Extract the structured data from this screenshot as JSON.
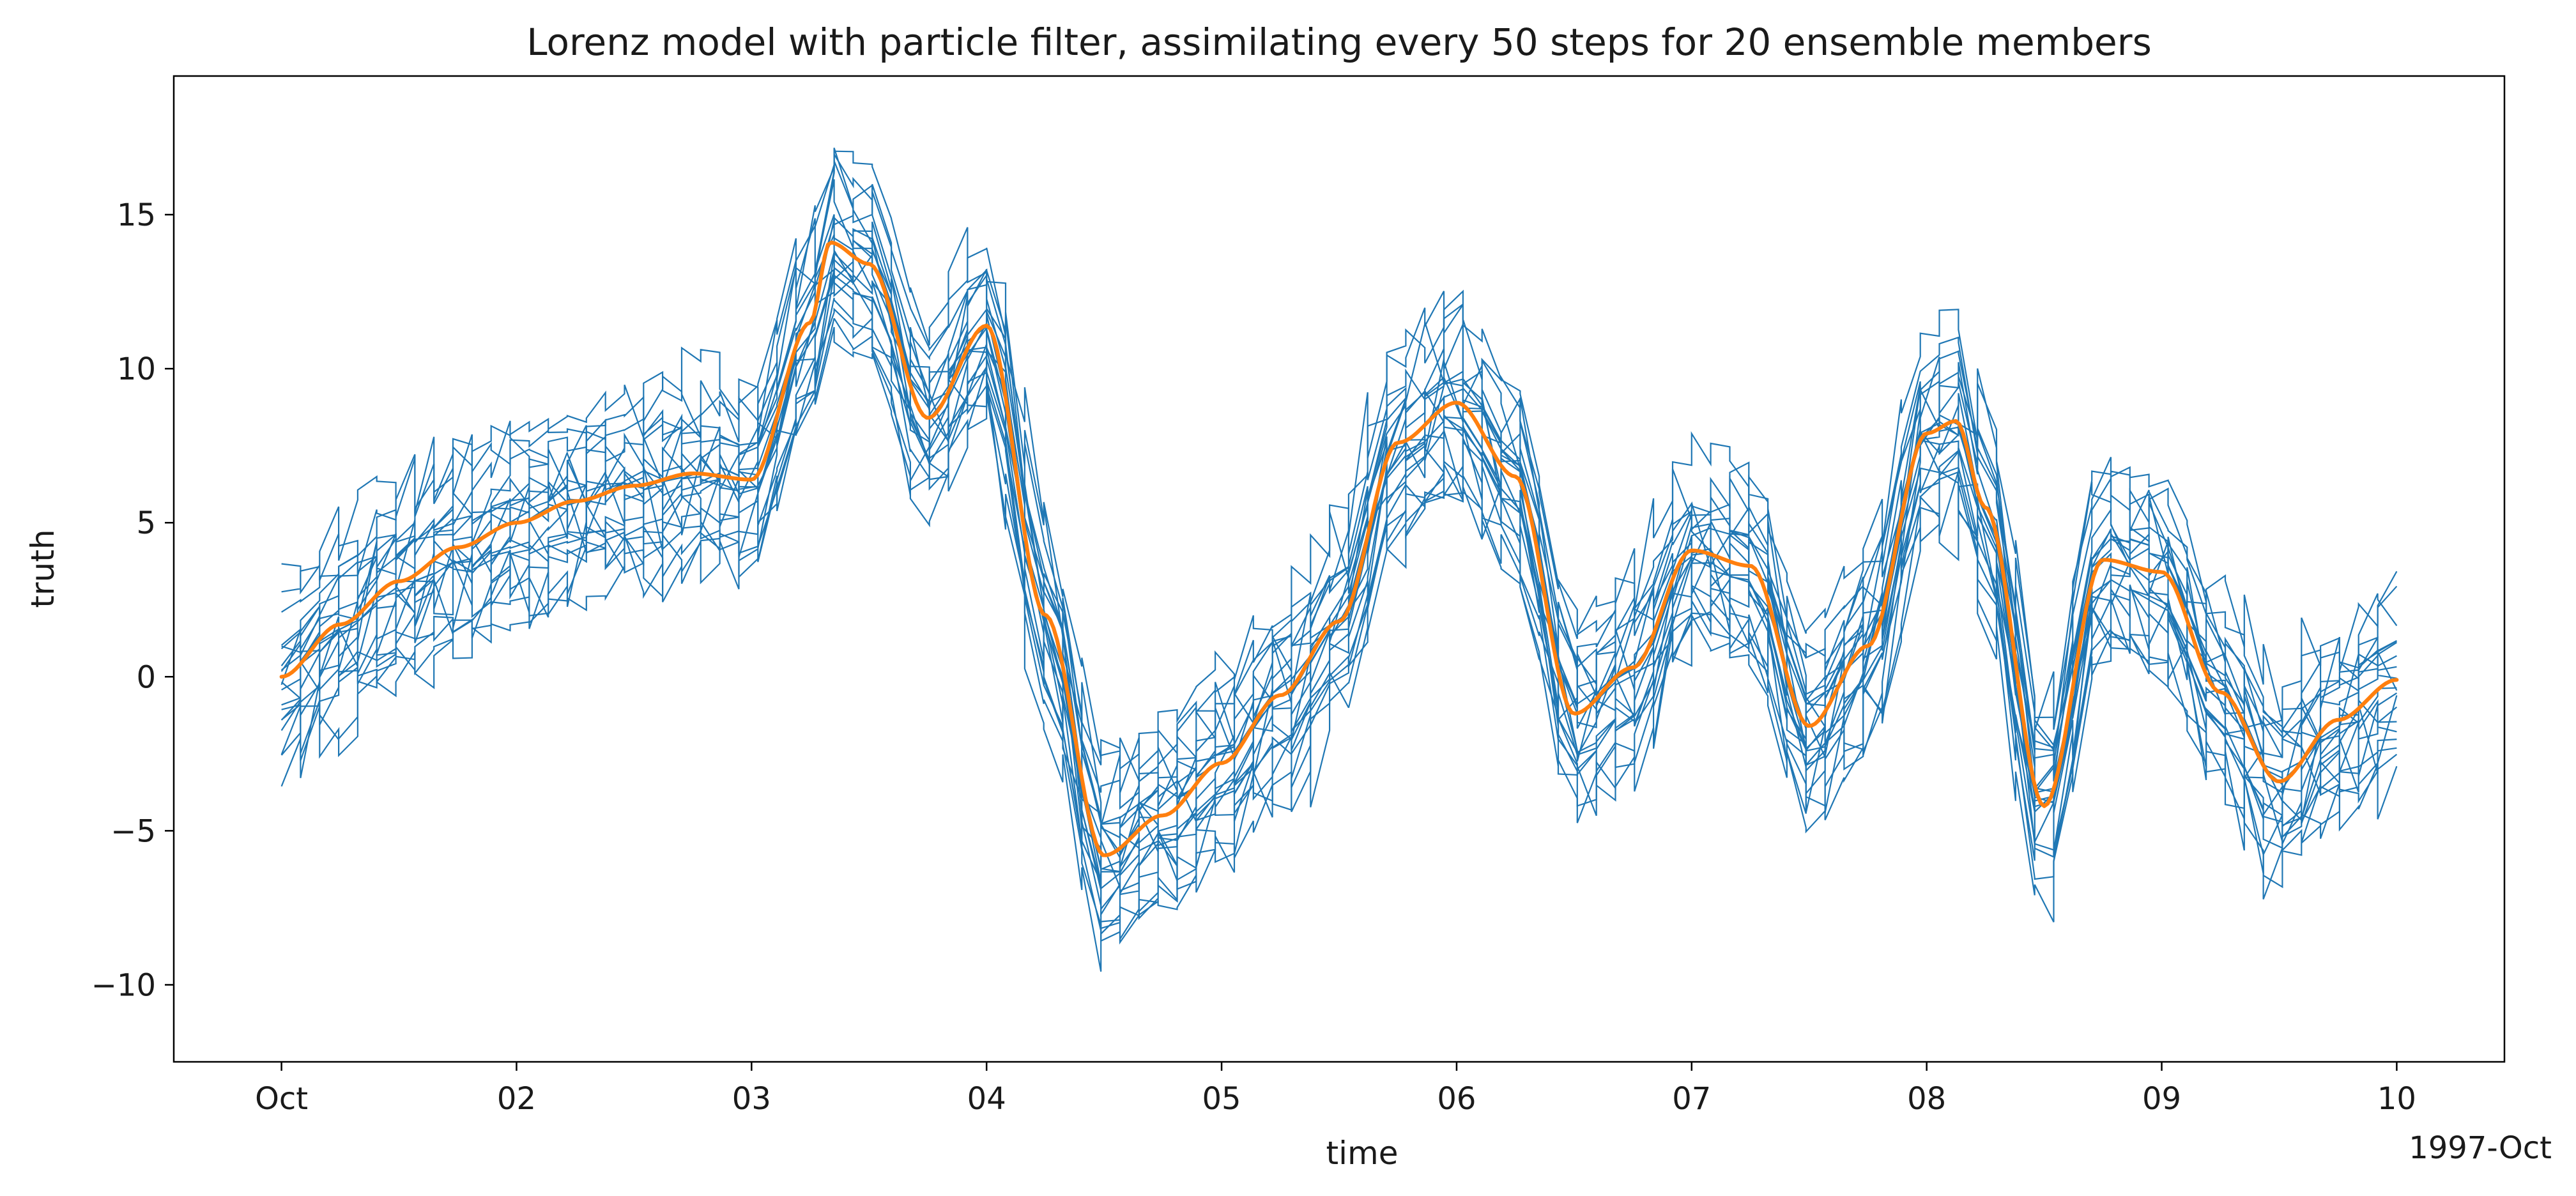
{
  "chart_data": {
    "type": "line",
    "title": "Lorenz model with particle filter, assimilating every 50 steps for 20 ensemble members",
    "xlabel": "time",
    "ylabel": "truth",
    "x_offset_label": "1997-Oct",
    "xlim": [
      "1997-09-30T13:00",
      "1997-10-10T11:00"
    ],
    "ylim": [
      -12.5,
      19.5
    ],
    "x_ticks": [
      {
        "date": "1997-10-01",
        "label": "Oct"
      },
      {
        "date": "1997-10-02",
        "label": "02"
      },
      {
        "date": "1997-10-03",
        "label": "03"
      },
      {
        "date": "1997-10-04",
        "label": "04"
      },
      {
        "date": "1997-10-05",
        "label": "05"
      },
      {
        "date": "1997-10-06",
        "label": "06"
      },
      {
        "date": "1997-10-07",
        "label": "07"
      },
      {
        "date": "1997-10-08",
        "label": "08"
      },
      {
        "date": "1997-10-09",
        "label": "09"
      },
      {
        "date": "1997-10-10",
        "label": "10"
      }
    ],
    "y_ticks": [
      {
        "value": 15,
        "label": "15"
      },
      {
        "value": 10,
        "label": "10"
      },
      {
        "value": 5,
        "label": "5"
      },
      {
        "value": 0,
        "label": "0"
      },
      {
        "value": -5,
        "label": "−5"
      },
      {
        "value": -10,
        "label": "−10"
      }
    ],
    "grid": false,
    "series": [
      {
        "role": "truth",
        "color": "#ff7f0e",
        "x": [
          "1997-10-01T00:00",
          "1997-10-01T06:00",
          "1997-10-01T12:00",
          "1997-10-01T18:00",
          "1997-10-02T00:00",
          "1997-10-02T06:00",
          "1997-10-02T12:00",
          "1997-10-02T18:00",
          "1997-10-03T00:00",
          "1997-10-03T06:00",
          "1997-10-03T08:00",
          "1997-10-03T12:00",
          "1997-10-03T18:00",
          "1997-10-04T00:00",
          "1997-10-04T06:00",
          "1997-10-04T12:00",
          "1997-10-04T18:00",
          "1997-10-05T00:00",
          "1997-10-05T06:00",
          "1997-10-05T12:00",
          "1997-10-05T18:00",
          "1997-10-06T00:00",
          "1997-10-06T06:00",
          "1997-10-06T12:00",
          "1997-10-06T18:00",
          "1997-10-07T00:00",
          "1997-10-07T06:00",
          "1997-10-07T12:00",
          "1997-10-07T18:00",
          "1997-10-08T00:00",
          "1997-10-08T03:00",
          "1997-10-08T06:00",
          "1997-10-08T12:00",
          "1997-10-08T18:00",
          "1997-10-09T00:00",
          "1997-10-09T06:00",
          "1997-10-09T12:00",
          "1997-10-09T18:00",
          "1997-10-10T00:00"
        ],
        "y": [
          0.0,
          1.7,
          3.1,
          4.2,
          5.0,
          5.7,
          6.2,
          6.6,
          6.4,
          11.5,
          14.1,
          13.4,
          8.4,
          11.4,
          2.0,
          -5.8,
          -4.5,
          -2.8,
          -0.6,
          1.8,
          7.6,
          8.9,
          6.5,
          -1.2,
          0.3,
          4.1,
          3.6,
          -1.6,
          1.0,
          7.9,
          8.3,
          5.5,
          -4.2,
          3.8,
          3.4,
          -0.5,
          -3.4,
          -1.4,
          -0.1
        ]
      }
    ],
    "ensemble": {
      "members": 20,
      "color": "#1f77b4",
      "assimilation_interval_steps": 50,
      "member_offsets": [
        -3.1,
        -2.6,
        -2.3,
        -1.9,
        -1.6,
        -1.3,
        -1.0,
        -0.8,
        -0.5,
        -0.3,
        -0.1,
        0.2,
        0.4,
        0.7,
        0.9,
        1.2,
        1.5,
        1.9,
        2.4,
        3.0
      ]
    }
  }
}
